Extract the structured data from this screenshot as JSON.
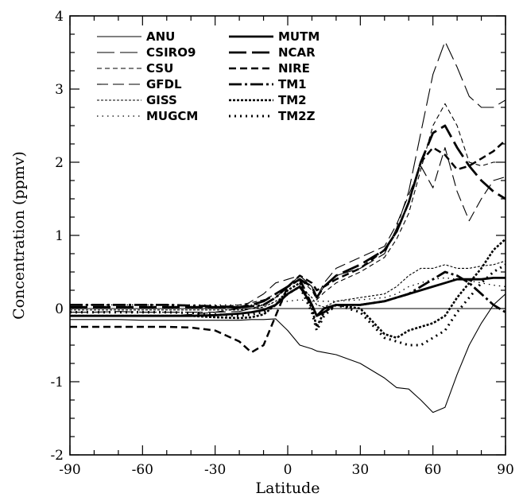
{
  "chart_data": {
    "type": "line",
    "title": "",
    "xlabel": "Latitude",
    "ylabel": "Concentration (ppmv)",
    "xlim": [
      -90,
      90
    ],
    "ylim": [
      -2,
      4
    ],
    "x_ticks": [
      "-90",
      "-60",
      "-30",
      "0",
      "30",
      "60",
      "90"
    ],
    "y_ticks": [
      "-2",
      "-1",
      "0",
      "1",
      "2",
      "3",
      "4"
    ],
    "grid": false,
    "legend_position": "top-left",
    "x": [
      -90,
      -80,
      -70,
      -60,
      -50,
      -40,
      -30,
      -20,
      -15,
      -10,
      -5,
      0,
      5,
      10,
      12,
      15,
      20,
      30,
      40,
      45,
      50,
      55,
      60,
      65,
      70,
      75,
      80,
      85,
      90
    ],
    "series": [
      {
        "name": "ANU",
        "style": "thin-solid",
        "values": [
          -0.15,
          -0.15,
          -0.15,
          -0.16,
          -0.16,
          -0.16,
          -0.16,
          -0.16,
          -0.15,
          -0.15,
          -0.14,
          -0.3,
          -0.5,
          -0.55,
          -0.58,
          -0.6,
          -0.63,
          -0.75,
          -0.95,
          -1.08,
          -1.1,
          -1.25,
          -1.42,
          -1.35,
          -0.9,
          -0.5,
          -0.2,
          0.05,
          0.2
        ]
      },
      {
        "name": "CSIRO9",
        "style": "thin-long-dash",
        "values": [
          -0.05,
          -0.05,
          -0.04,
          -0.05,
          -0.05,
          -0.05,
          -0.05,
          -0.04,
          0.0,
          0.05,
          0.15,
          0.3,
          0.45,
          0.3,
          0.15,
          0.3,
          0.45,
          0.55,
          0.75,
          1.1,
          1.6,
          2.4,
          3.2,
          3.65,
          3.3,
          2.9,
          2.75,
          2.75,
          2.85
        ]
      },
      {
        "name": "CSU",
        "style": "thin-short-dash",
        "values": [
          0.0,
          0.0,
          0.0,
          0.0,
          0.0,
          0.0,
          0.02,
          0.05,
          0.08,
          0.12,
          0.2,
          0.3,
          0.4,
          0.25,
          0.12,
          0.22,
          0.35,
          0.5,
          0.7,
          0.95,
          1.3,
          1.9,
          2.5,
          2.8,
          2.5,
          2.0,
          1.95,
          2.0,
          2.0
        ]
      },
      {
        "name": "GFDL",
        "style": "thin-dash",
        "values": [
          -0.1,
          -0.1,
          -0.1,
          -0.1,
          -0.1,
          -0.08,
          -0.05,
          0.0,
          0.1,
          0.2,
          0.35,
          0.4,
          0.45,
          0.3,
          0.15,
          0.35,
          0.55,
          0.7,
          0.85,
          1.15,
          1.55,
          1.95,
          1.65,
          2.2,
          1.6,
          1.2,
          1.5,
          1.75,
          1.8
        ]
      },
      {
        "name": "GISS",
        "style": "thin-dense-dash",
        "values": [
          -0.02,
          -0.02,
          -0.02,
          -0.02,
          -0.02,
          -0.02,
          -0.02,
          -0.02,
          0.0,
          0.02,
          0.1,
          0.2,
          0.3,
          0.15,
          0.05,
          0.02,
          0.1,
          0.15,
          0.2,
          0.3,
          0.45,
          0.55,
          0.55,
          0.6,
          0.55,
          0.55,
          0.58,
          0.6,
          0.65
        ]
      },
      {
        "name": "MUGCM",
        "style": "thin-dot",
        "values": [
          0.05,
          0.05,
          0.05,
          0.05,
          0.05,
          0.05,
          0.05,
          0.05,
          0.05,
          0.05,
          0.08,
          0.1,
          0.12,
          0.1,
          0.1,
          0.1,
          0.1,
          0.12,
          0.15,
          0.2,
          0.3,
          0.35,
          0.4,
          0.42,
          0.4,
          0.38,
          0.35,
          0.32,
          0.3
        ]
      },
      {
        "name": "MUTM",
        "style": "thick-solid",
        "values": [
          -0.1,
          -0.1,
          -0.1,
          -0.1,
          -0.1,
          -0.1,
          -0.09,
          -0.07,
          -0.05,
          -0.02,
          0.05,
          0.2,
          0.3,
          0.05,
          -0.1,
          0.0,
          0.05,
          0.05,
          0.1,
          0.15,
          0.2,
          0.25,
          0.3,
          0.35,
          0.4,
          0.4,
          0.4,
          0.42,
          0.42
        ]
      },
      {
        "name": "NCAR",
        "style": "thick-long-dash",
        "values": [
          0.02,
          0.02,
          0.02,
          0.02,
          0.02,
          0.02,
          0.02,
          0.02,
          0.05,
          0.1,
          0.2,
          0.3,
          0.4,
          0.3,
          0.15,
          0.3,
          0.45,
          0.6,
          0.8,
          1.05,
          1.45,
          2.0,
          2.4,
          2.5,
          2.2,
          1.95,
          1.75,
          1.6,
          1.5
        ]
      },
      {
        "name": "NIRE",
        "style": "thick-dash",
        "values": [
          -0.25,
          -0.25,
          -0.25,
          -0.25,
          -0.25,
          -0.26,
          -0.3,
          -0.45,
          -0.6,
          -0.5,
          -0.1,
          0.3,
          0.45,
          0.35,
          0.25,
          0.3,
          0.4,
          0.55,
          0.8,
          1.05,
          1.45,
          2.0,
          2.2,
          2.1,
          1.9,
          1.95,
          2.05,
          2.15,
          2.3
        ]
      },
      {
        "name": "TM1",
        "style": "thick-dash-dot",
        "values": [
          0.05,
          0.05,
          0.05,
          0.05,
          0.05,
          0.04,
          0.03,
          0.02,
          0.03,
          0.05,
          0.15,
          0.3,
          0.4,
          0.05,
          -0.1,
          -0.05,
          0.05,
          0.05,
          0.1,
          0.15,
          0.2,
          0.3,
          0.4,
          0.5,
          0.45,
          0.35,
          0.2,
          0.05,
          -0.05
        ]
      },
      {
        "name": "TM2",
        "style": "thick-dense-dash",
        "values": [
          -0.1,
          -0.1,
          -0.1,
          -0.1,
          -0.1,
          -0.1,
          -0.12,
          -0.13,
          -0.12,
          -0.08,
          0.05,
          0.25,
          0.35,
          0.0,
          -0.25,
          -0.05,
          0.05,
          0.0,
          -0.35,
          -0.4,
          -0.3,
          -0.25,
          -0.2,
          -0.1,
          0.15,
          0.35,
          0.55,
          0.8,
          0.95
        ]
      },
      {
        "name": "TM2Z",
        "style": "thick-dot",
        "values": [
          -0.05,
          -0.05,
          -0.05,
          -0.05,
          -0.05,
          -0.06,
          -0.08,
          -0.1,
          -0.08,
          -0.05,
          0.05,
          0.2,
          0.3,
          -0.05,
          -0.3,
          -0.1,
          0.05,
          -0.05,
          -0.4,
          -0.45,
          -0.5,
          -0.5,
          -0.4,
          -0.3,
          -0.05,
          0.15,
          0.35,
          0.5,
          0.6
        ]
      }
    ]
  }
}
